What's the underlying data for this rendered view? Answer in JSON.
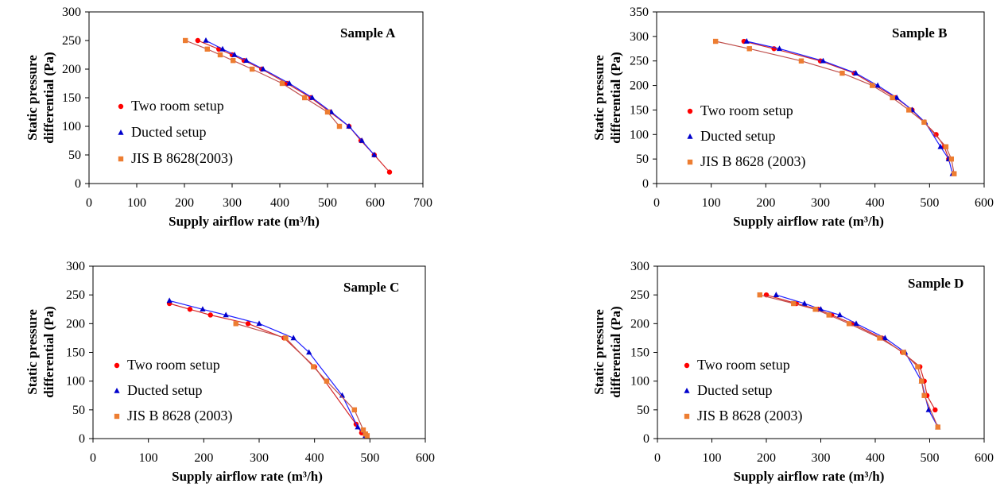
{
  "colors": {
    "two_room": "#ff0000",
    "ducted": "#0000cc",
    "jis": "#ed7d31",
    "trend_two_room": "#d62728",
    "trend_ducted": "#1f1fff",
    "trend_jis": "#c0504d"
  },
  "chart_data": [
    {
      "type": "scatter",
      "title": "Sample A",
      "xlabel": "Supply airflow rate (m³/h)",
      "ylabel_lines": [
        "Static pressure",
        "differential (Pa)"
      ],
      "xlim": [
        0,
        700
      ],
      "ylim": [
        0,
        300
      ],
      "xticks": [
        0,
        100,
        200,
        300,
        400,
        500,
        600,
        700
      ],
      "yticks": [
        0,
        50,
        100,
        150,
        200,
        250,
        300
      ],
      "legend": [
        "Two room setup",
        "Ducted setup",
        "JIS B 8628(2003)"
      ],
      "series": [
        {
          "name": "Two room setup",
          "marker": "circle",
          "x": [
            228,
            272,
            300,
            325,
            362,
            415,
            465,
            505,
            545,
            570,
            598,
            630
          ],
          "y": [
            250,
            235,
            225,
            215,
            200,
            175,
            150,
            125,
            100,
            75,
            50,
            20
          ]
        },
        {
          "name": "Ducted setup",
          "marker": "triangle",
          "x": [
            245,
            280,
            305,
            330,
            365,
            420,
            468,
            508,
            545,
            572,
            598
          ],
          "y": [
            250,
            235,
            225,
            215,
            200,
            175,
            150,
            125,
            100,
            75,
            50
          ]
        },
        {
          "name": "JIS B 8628(2003)",
          "marker": "square",
          "x": [
            202,
            248,
            275,
            302,
            342,
            405,
            452,
            500,
            525
          ],
          "y": [
            250,
            235,
            225,
            215,
            200,
            175,
            150,
            125,
            100
          ]
        }
      ]
    },
    {
      "type": "scatter",
      "title": "Sample B",
      "xlabel": "Supply airflow rate (m³/h)",
      "ylabel_lines": [
        "Static pressure",
        "differential (Pa)"
      ],
      "xlim": [
        0,
        600
      ],
      "ylim": [
        0,
        350
      ],
      "xticks": [
        0,
        100,
        200,
        300,
        400,
        500,
        600
      ],
      "yticks": [
        0,
        50,
        100,
        150,
        200,
        250,
        300,
        350
      ],
      "legend": [
        "Two room setup",
        "Ducted setup",
        "JIS B 8628 (2003)"
      ],
      "series": [
        {
          "name": "Two room setup",
          "marker": "circle",
          "x": [
            160,
            215,
            300,
            362,
            438,
            468,
            490,
            512,
            527,
            535
          ],
          "y": [
            290,
            275,
            250,
            225,
            175,
            150,
            125,
            100,
            75,
            50
          ]
        },
        {
          "name": "Ducted setup",
          "marker": "triangle",
          "x": [
            165,
            225,
            305,
            365,
            405,
            440,
            468,
            492,
            520,
            535,
            542
          ],
          "y": [
            290,
            275,
            250,
            225,
            200,
            175,
            150,
            125,
            75,
            50,
            20
          ]
        },
        {
          "name": "JIS B 8628 (2003)",
          "marker": "square",
          "x": [
            108,
            170,
            265,
            340,
            395,
            432,
            462,
            490,
            530,
            540,
            545
          ],
          "y": [
            290,
            275,
            250,
            225,
            200,
            175,
            150,
            125,
            75,
            50,
            20
          ]
        }
      ]
    },
    {
      "type": "scatter",
      "title": "Sample C",
      "xlabel": "Supply airflow rate (m³/h)",
      "ylabel_lines": [
        "Static pressure",
        "differential (Pa)"
      ],
      "xlim": [
        0,
        600
      ],
      "ylim": [
        0,
        300
      ],
      "xticks": [
        0,
        100,
        200,
        300,
        400,
        500,
        600
      ],
      "yticks": [
        0,
        50,
        100,
        150,
        200,
        250,
        300
      ],
      "legend": [
        "Two room setup",
        "Ducted setup",
        "JIS B 8628 (2003)"
      ],
      "series": [
        {
          "name": "Two room setup",
          "marker": "circle",
          "x": [
            138,
            175,
            212,
            280,
            345,
            400,
            475,
            485,
            492
          ],
          "y": [
            235,
            225,
            215,
            200,
            175,
            125,
            25,
            10,
            5
          ]
        },
        {
          "name": "Ducted setup",
          "marker": "triangle",
          "x": [
            138,
            198,
            240,
            300,
            362,
            390,
            450,
            478,
            492
          ],
          "y": [
            240,
            225,
            215,
            200,
            175,
            150,
            75,
            20,
            5
          ]
        },
        {
          "name": "JIS B 8628 (2003)",
          "marker": "square",
          "x": [
            258,
            348,
            398,
            422,
            472,
            488,
            492,
            495
          ],
          "y": [
            200,
            175,
            125,
            100,
            50,
            15,
            8,
            5
          ]
        }
      ]
    },
    {
      "type": "scatter",
      "title": "Sample D",
      "xlabel": "Supply airflow rate (m³/h)",
      "ylabel_lines": [
        "Static pressure",
        "differential (Pa)"
      ],
      "xlim": [
        0,
        600
      ],
      "ylim": [
        0,
        300
      ],
      "xticks": [
        0,
        100,
        200,
        300,
        400,
        500,
        600
      ],
      "yticks": [
        0,
        50,
        100,
        150,
        200,
        250,
        300
      ],
      "legend": [
        "Two room setup",
        "Ducted setup",
        "JIS B 8628 (2003)"
      ],
      "series": [
        {
          "name": "Two room setup",
          "marker": "circle",
          "x": [
            200,
            255,
            295,
            320,
            358,
            412,
            450,
            482,
            490,
            495,
            510
          ],
          "y": [
            250,
            235,
            225,
            215,
            200,
            175,
            150,
            125,
            100,
            75,
            50
          ]
        },
        {
          "name": "Ducted setup",
          "marker": "triangle",
          "x": [
            218,
            270,
            300,
            335,
            365,
            418,
            455,
            485,
            498,
            515
          ],
          "y": [
            250,
            235,
            225,
            215,
            200,
            175,
            150,
            100,
            50,
            20
          ]
        },
        {
          "name": "JIS B 8628 (2003)",
          "marker": "square",
          "x": [
            188,
            250,
            290,
            315,
            352,
            408,
            452,
            478,
            485,
            490,
            515
          ],
          "y": [
            250,
            235,
            225,
            215,
            200,
            175,
            150,
            125,
            100,
            75,
            20
          ]
        }
      ]
    }
  ]
}
